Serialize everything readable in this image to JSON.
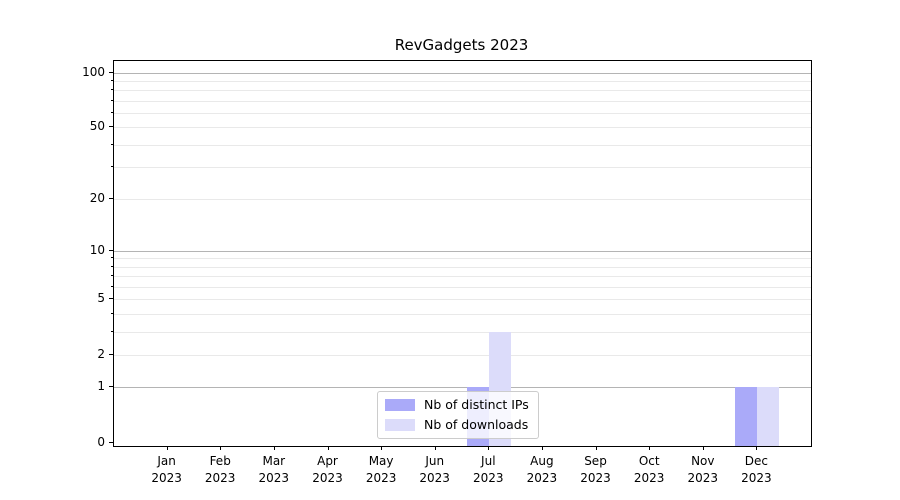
{
  "chart_data": {
    "type": "bar",
    "title": "RevGadgets 2023",
    "categories": [
      {
        "month": "Jan",
        "year": "2023"
      },
      {
        "month": "Feb",
        "year": "2023"
      },
      {
        "month": "Mar",
        "year": "2023"
      },
      {
        "month": "Apr",
        "year": "2023"
      },
      {
        "month": "May",
        "year": "2023"
      },
      {
        "month": "Jun",
        "year": "2023"
      },
      {
        "month": "Jul",
        "year": "2023"
      },
      {
        "month": "Aug",
        "year": "2023"
      },
      {
        "month": "Sep",
        "year": "2023"
      },
      {
        "month": "Oct",
        "year": "2023"
      },
      {
        "month": "Nov",
        "year": "2023"
      },
      {
        "month": "Dec",
        "year": "2023"
      }
    ],
    "series": [
      {
        "name": "Nb of distinct IPs",
        "color": "#aaaaf9",
        "values": [
          0,
          0,
          0,
          0,
          0,
          0,
          1,
          0,
          0,
          0,
          0,
          1
        ]
      },
      {
        "name": "Nb of downloads",
        "color": "#dcdcfa",
        "values": [
          0,
          0,
          0,
          0,
          0,
          0,
          3,
          0,
          0,
          0,
          0,
          1
        ]
      }
    ],
    "y_scale": "log1p",
    "ylim": [
      0,
      116
    ],
    "y_ticks": [
      0,
      1,
      2,
      5,
      10,
      20,
      50,
      100
    ],
    "y_major_gridlines": [
      1,
      10,
      100
    ],
    "y_minor_gridlines": [
      2,
      3,
      4,
      5,
      6,
      7,
      8,
      9,
      20,
      30,
      40,
      50,
      60,
      70,
      80,
      90
    ],
    "grid": true,
    "legend_position": "lower center",
    "xlabel": "",
    "ylabel": ""
  }
}
